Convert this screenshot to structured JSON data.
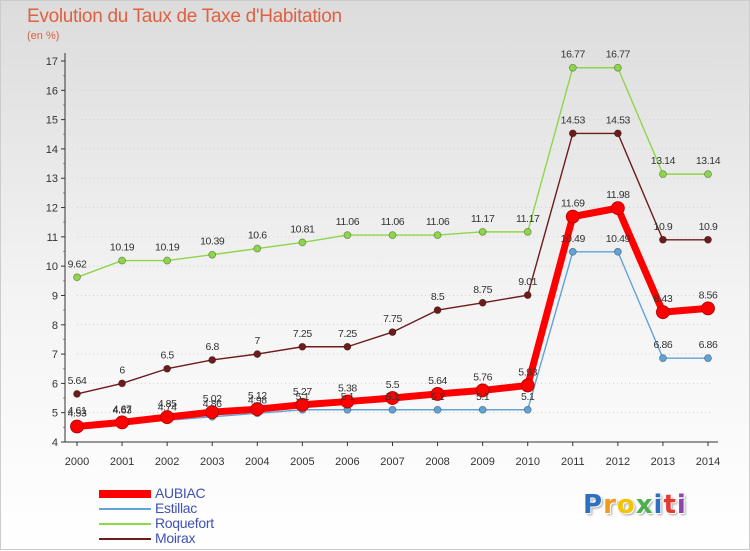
{
  "chart": {
    "title": "Evolution du Taux de Taxe d'Habitation",
    "unit": "(en %)"
  },
  "colors": {
    "AUBIAC": "#ff0000",
    "Estillac": "#5fa3d8",
    "Roquefort": "#8ed649",
    "Moirax": "#6e1b1b",
    "axis": "#333333",
    "grid": "#cfcfcf"
  },
  "chart_data": {
    "type": "line",
    "title": "Evolution du Taux de Taxe d'Habitation",
    "subtitle": "(en %)",
    "xlabel": "",
    "ylabel": "",
    "ylim": [
      4,
      17
    ],
    "y_ticks": [
      4,
      5,
      6,
      7,
      8,
      9,
      10,
      11,
      12,
      13,
      14,
      15,
      16,
      17
    ],
    "grid": "horizontal dotted",
    "legend_position": "bottom-left",
    "categories": [
      "2000",
      "2001",
      "2002",
      "2003",
      "2004",
      "2005",
      "2006",
      "2007",
      "2008",
      "2009",
      "2010",
      "2011",
      "2012",
      "2013",
      "2014"
    ],
    "series": [
      {
        "name": "Roquefort",
        "values": [
          9.62,
          10.19,
          10.19,
          10.39,
          10.6,
          10.81,
          11.06,
          11.06,
          11.06,
          11.17,
          11.17,
          16.77,
          16.77,
          13.14,
          13.14
        ],
        "labels": [
          "9.62",
          "10.19",
          "10.19",
          "10.39",
          "10.6",
          "10.81",
          "11.06",
          "11.06",
          "11.06",
          "11.17",
          "11.17",
          "16.77",
          "16.77",
          "13.14",
          "13.14"
        ]
      },
      {
        "name": "Moirax",
        "values": [
          5.64,
          6,
          6.5,
          6.8,
          7,
          7.25,
          7.25,
          7.75,
          8.5,
          8.75,
          9.01,
          14.53,
          14.53,
          10.9,
          10.9
        ],
        "labels": [
          "5.64",
          "6",
          "6.5",
          "6.8",
          "7",
          "7.25",
          "7.25",
          "7.75",
          "8.5",
          "8.75",
          "9.01",
          "14.53",
          "14.53",
          "10.9",
          "10.9"
        ]
      },
      {
        "name": "Estillac",
        "values": [
          4.61,
          4.63,
          4.74,
          4.86,
          4.98,
          5.1,
          5.1,
          5.1,
          5.1,
          5.1,
          5.1,
          10.49,
          10.49,
          6.86,
          6.86
        ],
        "labels": [
          "4.61",
          "4.63",
          "4.74",
          "4.86",
          "4.98",
          "5.1",
          "5.1",
          "5.1",
          "5.1",
          "5.1",
          "5.1",
          "10.49",
          "10.49",
          "6.86",
          "6.86"
        ]
      },
      {
        "name": "AUBIAC",
        "values": [
          4.53,
          4.67,
          4.85,
          5.02,
          5.12,
          5.27,
          5.38,
          5.5,
          5.64,
          5.76,
          5.93,
          11.69,
          11.98,
          8.43,
          8.56
        ],
        "labels": [
          "4.53",
          "4.67",
          "4.85",
          "5.02",
          "5.12",
          "5.27",
          "5.38",
          "5.5",
          "5.64",
          "5.76",
          "5.93",
          "11.69",
          "11.98",
          "8.43",
          "8.56"
        ]
      }
    ]
  },
  "legend": [
    {
      "key": "AUBIAC",
      "label": "AUBIAC",
      "thick": true
    },
    {
      "key": "Estillac",
      "label": "Estillac",
      "thick": false
    },
    {
      "key": "Roquefort",
      "label": "Roquefort",
      "thick": false
    },
    {
      "key": "Moirax",
      "label": "Moirax",
      "thick": false
    }
  ],
  "logo": {
    "letters": [
      {
        "ch": "P",
        "color": "#2e6fc0"
      },
      {
        "ch": "r",
        "color": "#f39a1d"
      },
      {
        "ch": "o",
        "color": "#f5c400"
      },
      {
        "ch": "x",
        "color": "#4caf50"
      },
      {
        "ch": "i",
        "color": "#2e6fc0"
      },
      {
        "ch": "t",
        "color": "#e53935"
      },
      {
        "ch": "i",
        "color": "#8e44ad"
      }
    ]
  }
}
